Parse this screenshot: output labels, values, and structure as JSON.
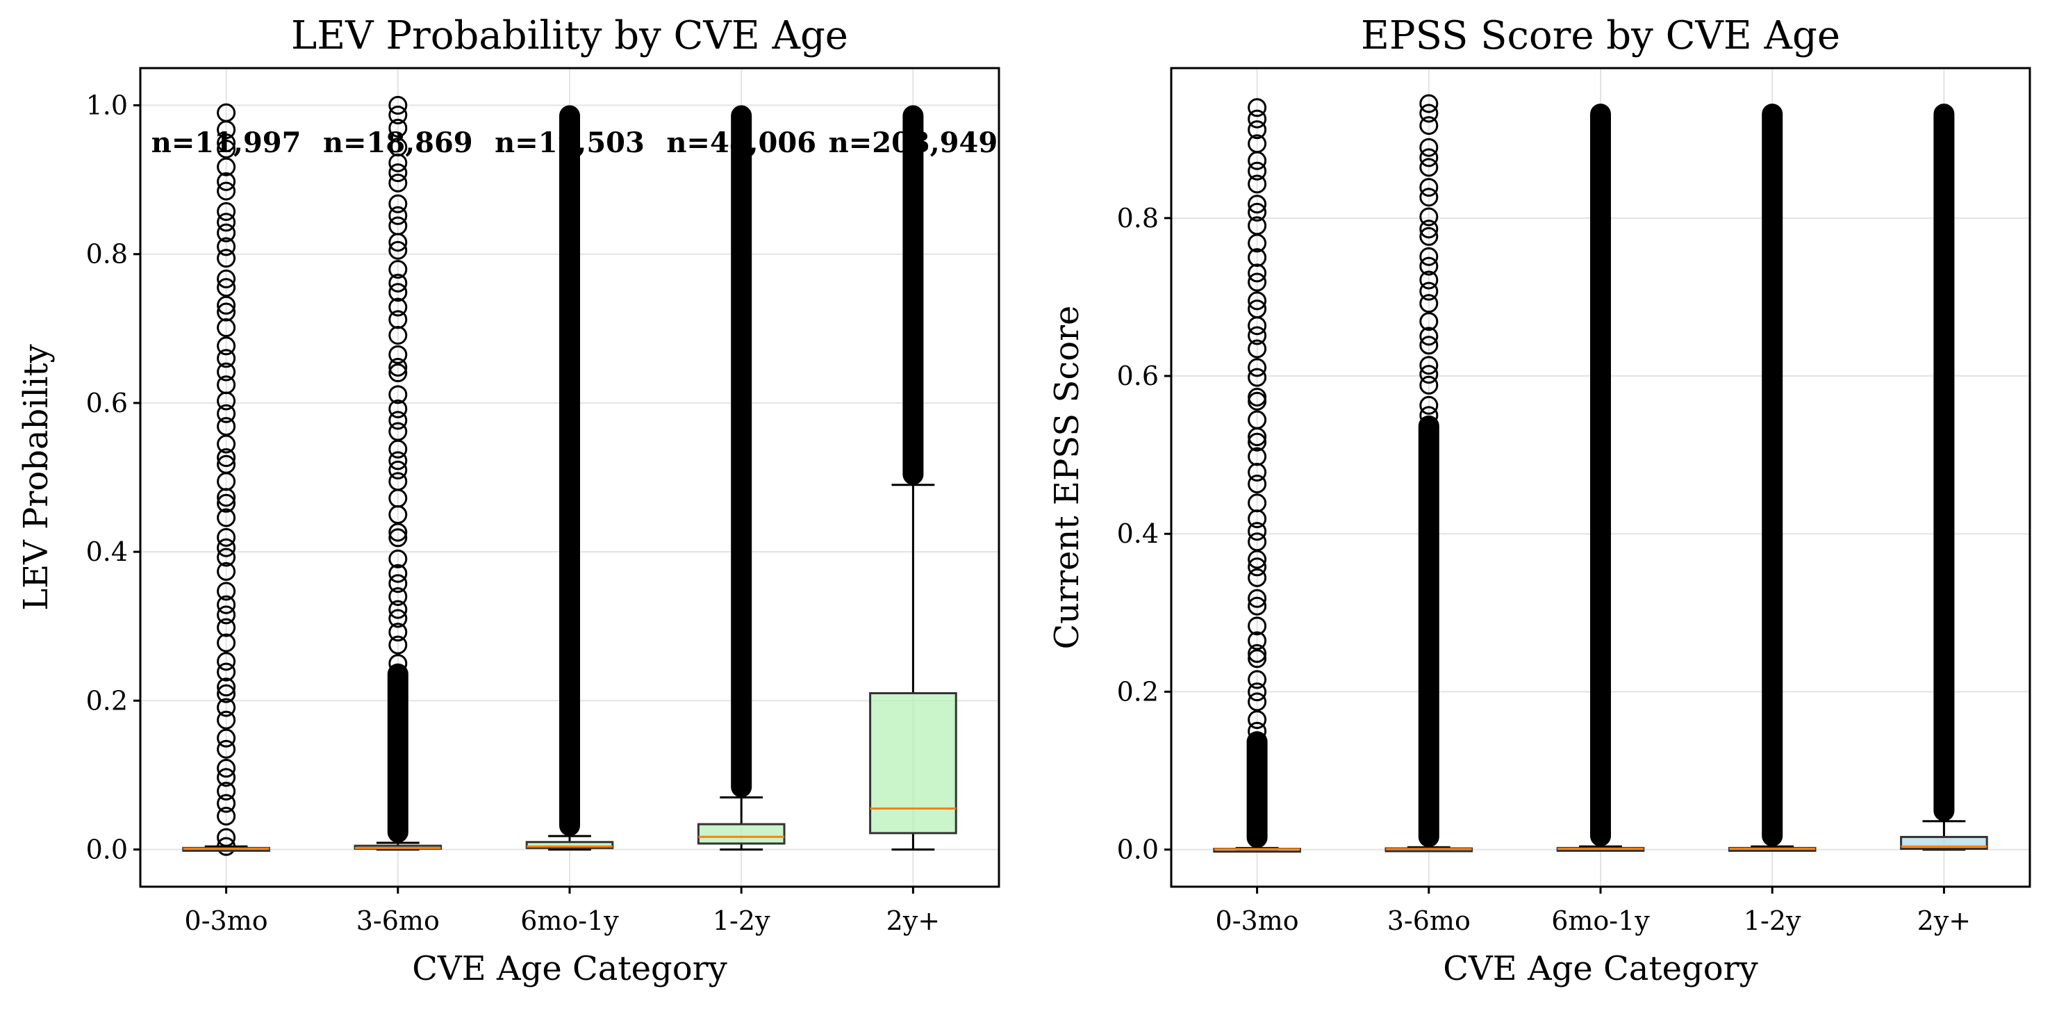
{
  "chart_data": [
    {
      "type": "box",
      "title": "LEV Probability by CVE Age",
      "xlabel": "CVE Age Category",
      "ylabel": "LEV Probability",
      "categories": [
        "0-3mo",
        "3-6mo",
        "6mo-1y",
        "1-2y",
        "2y+"
      ],
      "ylim": [
        -0.05,
        1.05
      ],
      "yticks": [
        "0.0",
        "0.2",
        "0.4",
        "0.6",
        "0.8",
        "1.0"
      ],
      "grid": true,
      "n_labels": [
        "n=11,997",
        "n=18,869",
        "n=19,503",
        "n=48,006",
        "n=203,949"
      ],
      "box_color": "#b3f0b3",
      "median_color": "#ff7f0e",
      "boxes": [
        {
          "q1": 0.0005,
          "median": 0.001,
          "q3": 0.002,
          "whisker_low": 0.0,
          "whisker_high": 0.004,
          "outliers_low": 0.004,
          "outliers_high": 0.99,
          "dense_top": 0.0
        },
        {
          "q1": 0.001,
          "median": 0.002,
          "q3": 0.005,
          "whisker_low": 0.0,
          "whisker_high": 0.009,
          "outliers_low": 0.009,
          "outliers_high": 1.0,
          "dense_top": 0.25
        },
        {
          "q1": 0.002,
          "median": 0.004,
          "q3": 0.01,
          "whisker_low": 0.0,
          "whisker_high": 0.018,
          "outliers_low": 0.018,
          "outliers_high": 1.0,
          "dense_top": 1.0
        },
        {
          "q1": 0.008,
          "median": 0.017,
          "q3": 0.034,
          "whisker_low": 0.0,
          "whisker_high": 0.07,
          "outliers_low": 0.07,
          "outliers_high": 1.0,
          "dense_top": 1.0
        },
        {
          "q1": 0.022,
          "median": 0.055,
          "q3": 0.21,
          "whisker_low": 0.0,
          "whisker_high": 0.49,
          "outliers_low": 0.49,
          "outliers_high": 1.0,
          "dense_top": 1.0
        }
      ]
    },
    {
      "type": "box",
      "title": "EPSS Score by CVE Age",
      "xlabel": "CVE Age Category",
      "ylabel": "Current EPSS Score",
      "categories": [
        "0-3mo",
        "3-6mo",
        "6mo-1y",
        "1-2y",
        "2y+"
      ],
      "ylim": [
        -0.047,
        0.99
      ],
      "yticks": [
        "0.0",
        "0.2",
        "0.4",
        "0.6",
        "0.8"
      ],
      "grid": true,
      "box_color": "#add8e6",
      "median_color": "#ff7f0e",
      "boxes": [
        {
          "q1": 0.0002,
          "median": 0.0005,
          "q3": 0.001,
          "whisker_low": 0.0,
          "whisker_high": 0.002,
          "outliers_low": 0.002,
          "outliers_high": 0.94,
          "dense_top": 0.15
        },
        {
          "q1": 0.0003,
          "median": 0.0007,
          "q3": 0.0015,
          "whisker_low": 0.0,
          "whisker_high": 0.003,
          "outliers_low": 0.003,
          "outliers_high": 0.945,
          "dense_top": 0.55
        },
        {
          "q1": 0.0004,
          "median": 0.001,
          "q3": 0.002,
          "whisker_low": 0.0,
          "whisker_high": 0.004,
          "outliers_low": 0.004,
          "outliers_high": 0.945,
          "dense_top": 0.945
        },
        {
          "q1": 0.0004,
          "median": 0.001,
          "q3": 0.002,
          "whisker_low": 0.0,
          "whisker_high": 0.004,
          "outliers_low": 0.004,
          "outliers_high": 0.945,
          "dense_top": 0.945
        },
        {
          "q1": 0.001,
          "median": 0.004,
          "q3": 0.016,
          "whisker_low": 0.0,
          "whisker_high": 0.036,
          "outliers_low": 0.036,
          "outliers_high": 0.945,
          "dense_top": 0.945
        }
      ]
    }
  ]
}
